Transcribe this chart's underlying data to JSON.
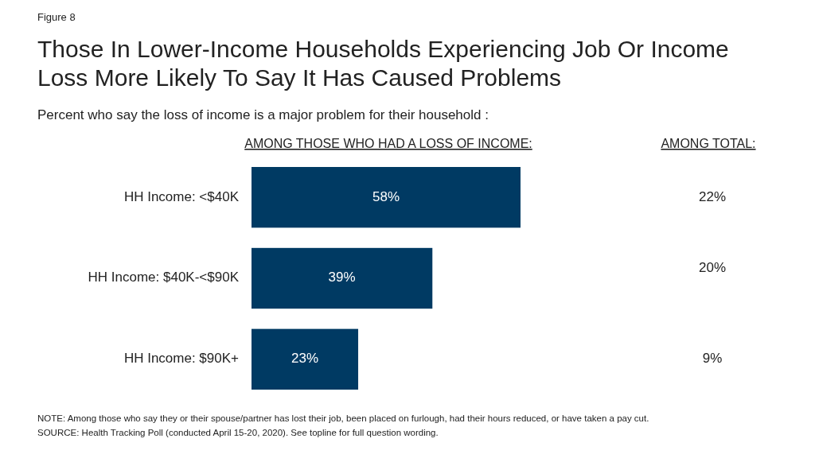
{
  "chart_data": {
    "type": "bar",
    "orientation": "horizontal",
    "title": "Those In Lower-Income Households Experiencing Job Or Income Loss More Likely To Say It Has Caused Problems",
    "subtitle": "Percent who say the loss of income is a major problem for their household :",
    "xlabel": "AMONG THOSE WHO HAD A LOSS OF INCOME:",
    "categories": [
      "HH Income: <$40K",
      "HH Income: $40K-<$90K",
      "HH Income: $90K+"
    ],
    "values": [
      58,
      39,
      23
    ],
    "color": "#003a63",
    "value_labels": [
      "58%",
      "39%",
      "23%"
    ],
    "annotations": [
      "Figure 8",
      "AMONG TOTAL:",
      "22%",
      "20%",
      "9%",
      "NOTE: Among those who say they or their spouse/partner has lost their job, been placed on furlough,  had their hours reduced, or have taken a pay cut.",
      "SOURCE: Health Tracking Poll (conducted April 15-20, 2020). See topline for full question wording."
    ]
  }
}
